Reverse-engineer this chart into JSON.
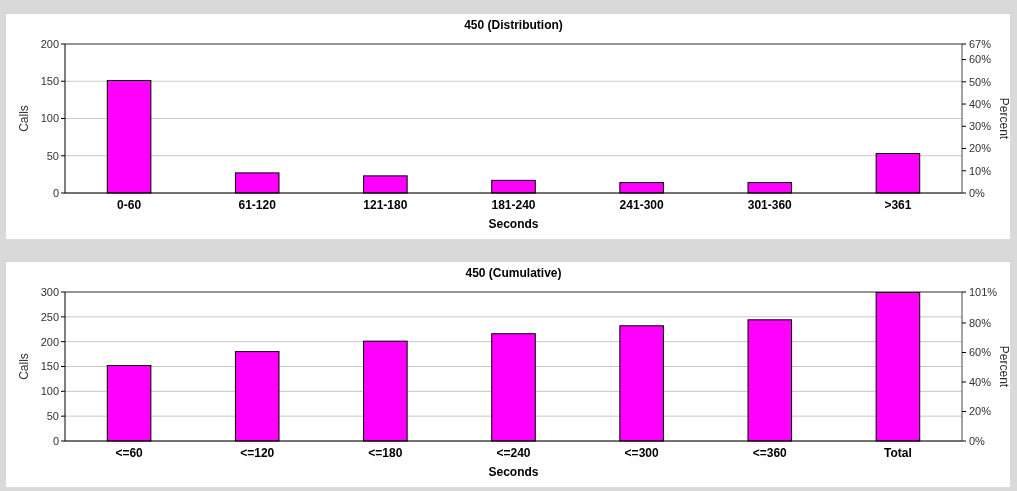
{
  "chart_data": [
    {
      "type": "bar",
      "title": "450 (Distribution)",
      "xlabel": "Seconds",
      "ylabel": "Calls",
      "y2label": "Percent",
      "categories": [
        "0-60",
        "61-120",
        "121-180",
        "181-240",
        "241-300",
        "301-360",
        ">361"
      ],
      "values": [
        151,
        27,
        23,
        17,
        14,
        14,
        53
      ],
      "color": "#ff00ff",
      "ylim": [
        0,
        200
      ],
      "yticks": [
        0,
        50,
        100,
        150,
        200
      ],
      "y2lim": [
        0,
        67
      ],
      "y2ticks": [
        {
          "value": 0,
          "label": "0%"
        },
        {
          "value": 10,
          "label": "10%"
        },
        {
          "value": 20,
          "label": "20%"
        },
        {
          "value": 30,
          "label": "30%"
        },
        {
          "value": 40,
          "label": "40%"
        },
        {
          "value": 50,
          "label": "50%"
        },
        {
          "value": 60,
          "label": "60%"
        },
        {
          "value": 67,
          "label": "67%"
        }
      ],
      "grid": "y"
    },
    {
      "type": "bar",
      "title": "450 (Cumulative)",
      "xlabel": "Seconds",
      "ylabel": "Calls",
      "y2label": "Percent",
      "categories": [
        "<=60",
        "<=120",
        "<=180",
        "<=240",
        "<=300",
        "<=360",
        "Total"
      ],
      "values": [
        152,
        180,
        201,
        216,
        232,
        244,
        299
      ],
      "color": "#ff00ff",
      "ylim": [
        0,
        300
      ],
      "yticks": [
        0,
        50,
        100,
        150,
        200,
        250,
        300
      ],
      "y2lim": [
        0,
        101
      ],
      "y2ticks": [
        {
          "value": 0,
          "label": "0%"
        },
        {
          "value": 20,
          "label": "20%"
        },
        {
          "value": 40,
          "label": "40%"
        },
        {
          "value": 60,
          "label": "60%"
        },
        {
          "value": 80,
          "label": "80%"
        },
        {
          "value": 101,
          "label": "101%"
        }
      ],
      "grid": "y"
    }
  ]
}
